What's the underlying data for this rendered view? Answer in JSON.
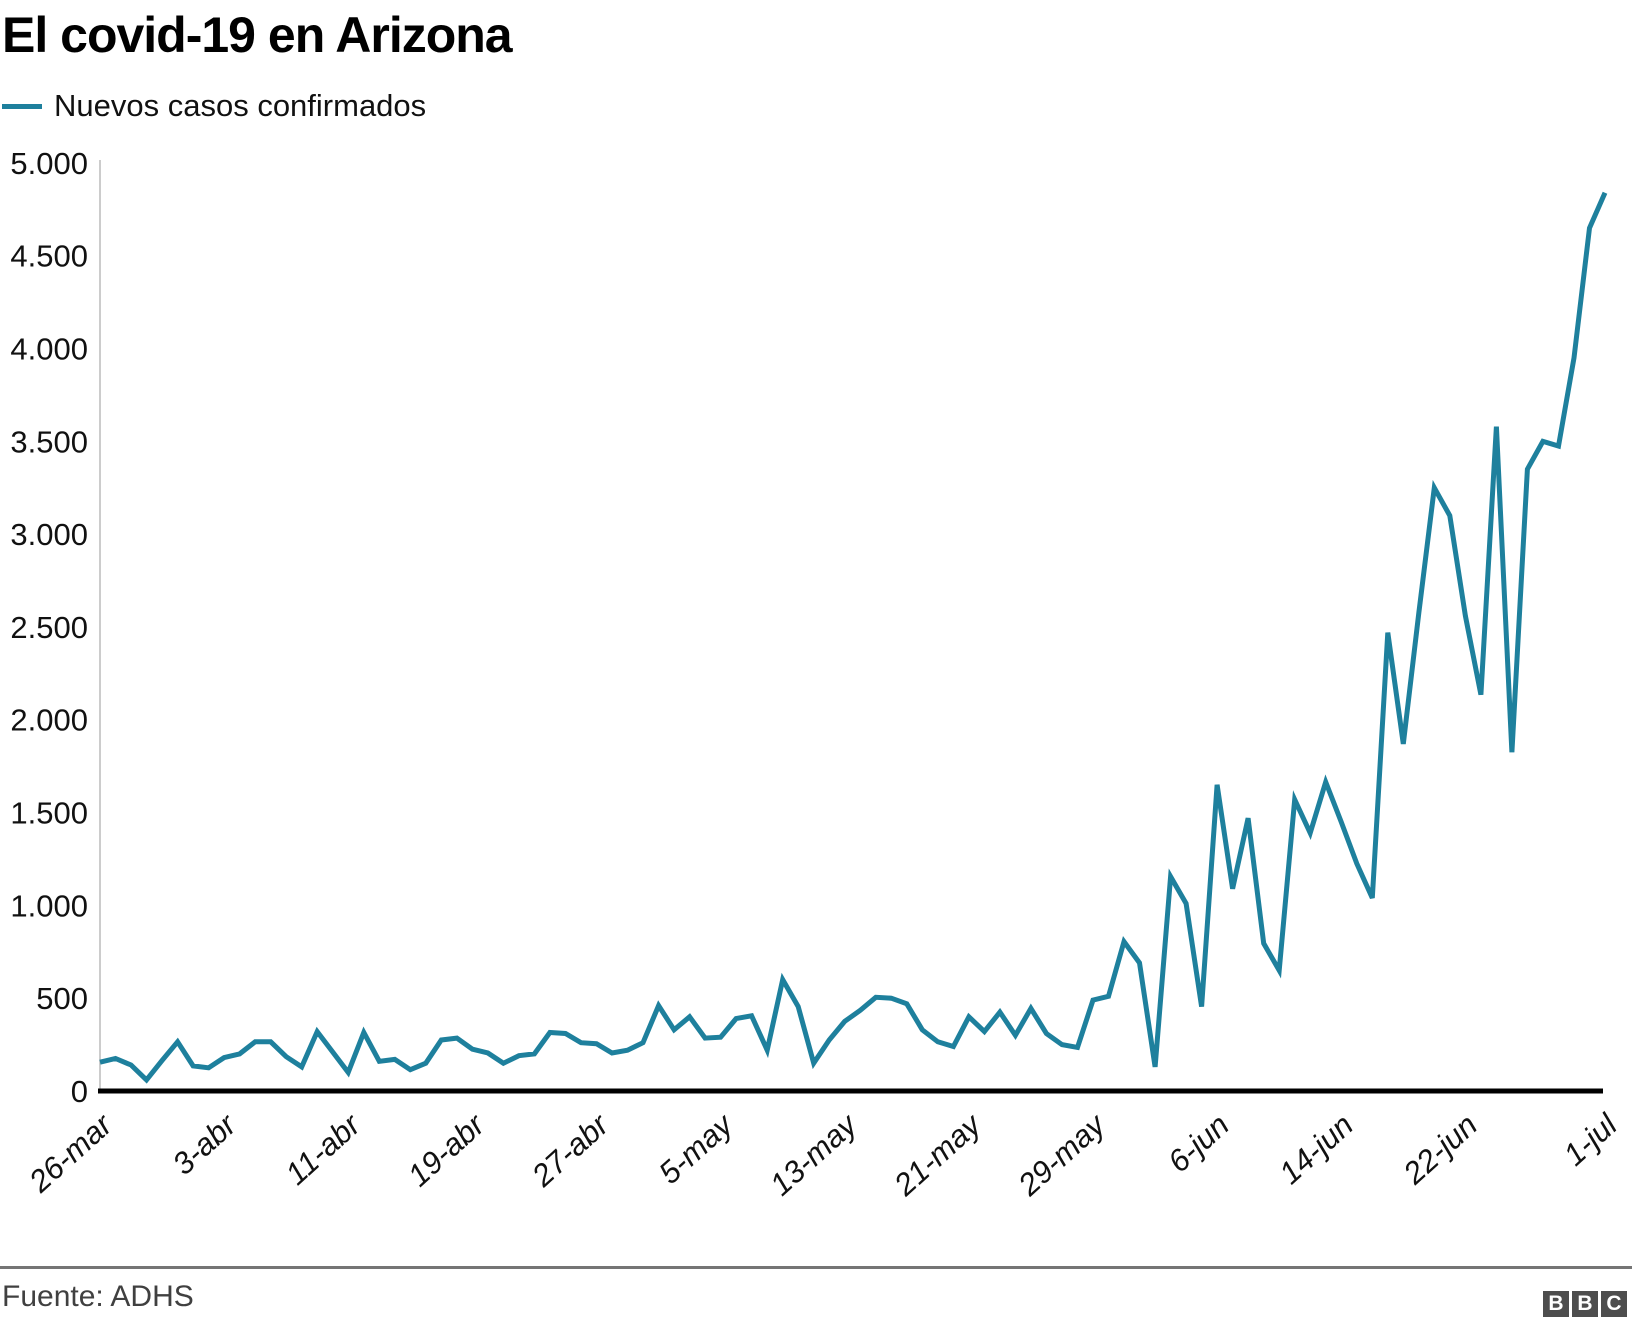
{
  "title": "El covid-19 en Arizona",
  "legend": {
    "label": "Nuevos casos confirmados",
    "color": "#1e809d"
  },
  "footer": {
    "source": "Fuente: ADHS",
    "logo_letters": [
      "B",
      "B",
      "C"
    ]
  },
  "chart_data": {
    "type": "line",
    "title": "El covid-19 en Arizona",
    "xlabel": "",
    "ylabel": "",
    "ylim": [
      0,
      5000
    ],
    "grid": false,
    "legend_position": "top-left",
    "line_color": "#1e809d",
    "axis_color": "#cccccc",
    "baseline_color": "#000000",
    "y_ticks": [
      {
        "label": "0",
        "value": 0
      },
      {
        "label": "500",
        "value": 500
      },
      {
        "label": "1.000",
        "value": 1000
      },
      {
        "label": "1.500",
        "value": 1500
      },
      {
        "label": "2.000",
        "value": 2000
      },
      {
        "label": "2.500",
        "value": 2500
      },
      {
        "label": "3.000",
        "value": 3000
      },
      {
        "label": "3.500",
        "value": 3500
      },
      {
        "label": "4.000",
        "value": 4000
      },
      {
        "label": "4.500",
        "value": 4500
      },
      {
        "label": "5.000",
        "value": 5000
      }
    ],
    "x_ticks": [
      {
        "label": "26-mar",
        "index": 0
      },
      {
        "label": "3-abr",
        "index": 8
      },
      {
        "label": "11-abr",
        "index": 16
      },
      {
        "label": "19-abr",
        "index": 24
      },
      {
        "label": "27-abr",
        "index": 32
      },
      {
        "label": "5-may",
        "index": 40
      },
      {
        "label": "13-may",
        "index": 48
      },
      {
        "label": "21-may",
        "index": 56
      },
      {
        "label": "29-may",
        "index": 64
      },
      {
        "label": "6-jun",
        "index": 72
      },
      {
        "label": "14-jun",
        "index": 80
      },
      {
        "label": "22-jun",
        "index": 88
      },
      {
        "label": "1-jul",
        "index": 97
      }
    ],
    "series": [
      {
        "name": "Nuevos casos confirmados",
        "dates": [
          "26-mar",
          "27-mar",
          "28-mar",
          "29-mar",
          "30-mar",
          "31-mar",
          "1-abr",
          "2-abr",
          "3-abr",
          "4-abr",
          "5-abr",
          "6-abr",
          "7-abr",
          "8-abr",
          "9-abr",
          "10-abr",
          "11-abr",
          "12-abr",
          "13-abr",
          "14-abr",
          "15-abr",
          "16-abr",
          "17-abr",
          "18-abr",
          "19-abr",
          "20-abr",
          "21-abr",
          "22-abr",
          "23-abr",
          "24-abr",
          "25-abr",
          "26-abr",
          "27-abr",
          "28-abr",
          "29-abr",
          "30-abr",
          "1-may",
          "2-may",
          "3-may",
          "4-may",
          "5-may",
          "6-may",
          "7-may",
          "8-may",
          "9-may",
          "10-may",
          "11-may",
          "12-may",
          "13-may",
          "14-may",
          "15-may",
          "16-may",
          "17-may",
          "18-may",
          "19-may",
          "20-may",
          "21-may",
          "22-may",
          "23-may",
          "24-may",
          "25-may",
          "26-may",
          "27-may",
          "28-may",
          "29-may",
          "30-may",
          "31-may",
          "1-jun",
          "2-jun",
          "3-jun",
          "4-jun",
          "5-jun",
          "6-jun",
          "7-jun",
          "8-jun",
          "9-jun",
          "10-jun",
          "11-jun",
          "12-jun",
          "13-jun",
          "14-jun",
          "15-jun",
          "16-jun",
          "17-jun",
          "18-jun",
          "19-jun",
          "20-jun",
          "21-jun",
          "22-jun",
          "23-jun",
          "24-jun",
          "25-jun",
          "26-jun",
          "27-jun",
          "28-jun",
          "29-jun",
          "30-jun",
          "1-jul"
        ],
        "values": [
          155,
          175,
          140,
          60,
          165,
          265,
          135,
          125,
          180,
          200,
          265,
          265,
          185,
          130,
          320,
          210,
          100,
          315,
          160,
          170,
          115,
          150,
          275,
          285,
          225,
          205,
          150,
          190,
          200,
          315,
          310,
          260,
          255,
          205,
          220,
          260,
          460,
          330,
          400,
          285,
          290,
          390,
          405,
          220,
          600,
          455,
          150,
          275,
          375,
          435,
          505,
          500,
          470,
          330,
          265,
          240,
          400,
          320,
          425,
          300,
          445,
          310,
          250,
          235,
          490,
          510,
          805,
          690,
          130,
          1155,
          1010,
          455,
          1650,
          1090,
          1470,
          795,
          650,
          1570,
          1390,
          1665,
          1450,
          1225,
          1040,
          2470,
          1870,
          2575,
          3250,
          3100,
          2560,
          2135,
          3580,
          1825,
          3350,
          3500,
          3475,
          3950,
          4650,
          4840
        ]
      }
    ]
  }
}
